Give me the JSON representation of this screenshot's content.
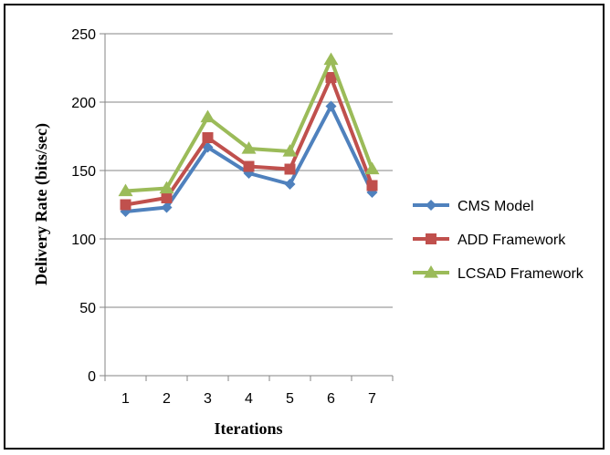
{
  "chart_data": {
    "type": "line",
    "title": "",
    "xlabel": "Iterations",
    "ylabel": "Delivery Rate (bits/sec)",
    "categories": [
      "1",
      "2",
      "3",
      "4",
      "5",
      "6",
      "7"
    ],
    "ylim": [
      0,
      250
    ],
    "yticks": [
      0,
      50,
      100,
      150,
      200,
      250
    ],
    "grid": "horizontal",
    "legend_position": "right",
    "series": [
      {
        "name": "CMS Model",
        "values": [
          120,
          123,
          167,
          148,
          140,
          197,
          134
        ],
        "color": "#4F81BD",
        "marker": "diamond"
      },
      {
        "name": "ADD Framework",
        "values": [
          125,
          130,
          174,
          153,
          151,
          218,
          139
        ],
        "color": "#C0504D",
        "marker": "square"
      },
      {
        "name": "LCSAD Framework",
        "values": [
          135,
          137,
          189,
          166,
          164,
          231,
          151
        ],
        "color": "#9BBB59",
        "marker": "triangle"
      }
    ]
  }
}
